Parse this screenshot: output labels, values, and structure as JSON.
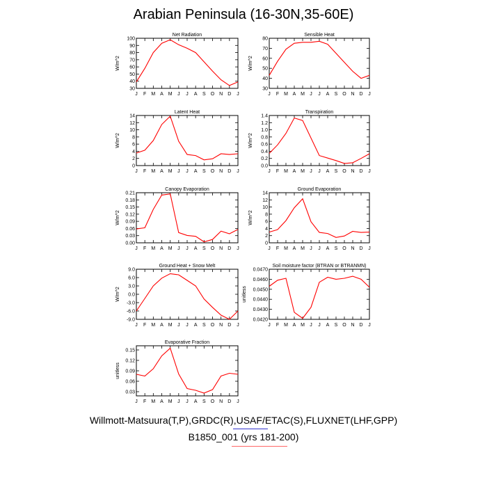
{
  "title": "Arabian Peninsula (16-30N,35-60E)",
  "footer": {
    "line1": "Willmott-Matsuura(T,P),GRDC(R),USAF/ETAC(S),FLUXNET(LHF,GPP)",
    "line2": "B1850_001 (yrs 181-200)",
    "underline_colors": [
      "#3333cc",
      "#ff6666"
    ]
  },
  "colors": {
    "line": "#ff0000",
    "axis": "#000000"
  },
  "chart_data": [
    {
      "type": "line",
      "title": "Net Radiation",
      "ylabel": "W/m^2",
      "categories": [
        "J",
        "F",
        "M",
        "A",
        "M",
        "J",
        "J",
        "A",
        "S",
        "O",
        "N",
        "D",
        "J"
      ],
      "values": [
        39,
        58,
        80,
        93,
        98,
        91,
        86,
        80,
        67,
        54,
        42,
        34,
        39
      ],
      "ylim": [
        30,
        100
      ],
      "yticks": [
        "30",
        "40",
        "50",
        "60",
        "70",
        "80",
        "90",
        "100"
      ],
      "ytick_values": [
        30,
        40,
        50,
        60,
        70,
        80,
        90,
        100
      ]
    },
    {
      "type": "line",
      "title": "Sensible Heat",
      "ylabel": "W/m^2",
      "categories": [
        "J",
        "F",
        "M",
        "A",
        "M",
        "J",
        "J",
        "A",
        "S",
        "O",
        "N",
        "D",
        "J"
      ],
      "values": [
        43,
        57,
        69,
        75,
        76,
        76,
        77,
        74,
        65,
        56,
        47,
        40,
        43
      ],
      "ylim": [
        30,
        80
      ],
      "yticks": [
        "30",
        "40",
        "50",
        "60",
        "70",
        "80"
      ],
      "ytick_values": [
        30,
        40,
        50,
        60,
        70,
        80
      ]
    },
    {
      "type": "line",
      "title": "Latent Heat",
      "ylabel": "W/m^2",
      "categories": [
        "J",
        "F",
        "M",
        "A",
        "M",
        "J",
        "J",
        "A",
        "S",
        "O",
        "N",
        "D",
        "J"
      ],
      "values": [
        3.5,
        4.3,
        7.0,
        11.5,
        13.8,
        6.8,
        3.1,
        2.8,
        1.6,
        1.9,
        3.3,
        3.1,
        3.3
      ],
      "ylim": [
        0,
        14
      ],
      "yticks": [
        "0",
        "2",
        "4",
        "6",
        "8",
        "10",
        "12",
        "14"
      ],
      "ytick_values": [
        0,
        2,
        4,
        6,
        8,
        10,
        12,
        14
      ]
    },
    {
      "type": "line",
      "title": "Transpiration",
      "ylabel": "W/m^2",
      "categories": [
        "J",
        "F",
        "M",
        "A",
        "M",
        "J",
        "J",
        "A",
        "S",
        "O",
        "N",
        "D",
        "J"
      ],
      "values": [
        0.34,
        0.58,
        0.9,
        1.33,
        1.26,
        0.77,
        0.28,
        0.21,
        0.14,
        0.06,
        0.08,
        0.2,
        0.33
      ],
      "ylim": [
        0,
        1.4
      ],
      "yticks": [
        "0.0",
        "0.2",
        "0.4",
        "0.6",
        "0.8",
        "1.0",
        "1.2",
        "1.4"
      ],
      "ytick_values": [
        0,
        0.2,
        0.4,
        0.6,
        0.8,
        1.0,
        1.2,
        1.4
      ]
    },
    {
      "type": "line",
      "title": "Canopy Evaporation",
      "ylabel": "W/m^2",
      "categories": [
        "J",
        "F",
        "M",
        "A",
        "M",
        "J",
        "J",
        "A",
        "S",
        "O",
        "N",
        "D",
        "J"
      ],
      "values": [
        0.058,
        0.063,
        0.14,
        0.2,
        0.205,
        0.043,
        0.031,
        0.027,
        0.004,
        0.014,
        0.049,
        0.038,
        0.056
      ],
      "ylim": [
        0,
        0.21
      ],
      "yticks": [
        "0.00",
        "0.03",
        "0.06",
        "0.09",
        "0.12",
        "0.15",
        "0.18",
        "0.21"
      ],
      "ytick_values": [
        0,
        0.03,
        0.06,
        0.09,
        0.12,
        0.15,
        0.18,
        0.21
      ]
    },
    {
      "type": "line",
      "title": "Ground Evaporation",
      "ylabel": "W/m^2",
      "categories": [
        "J",
        "F",
        "M",
        "A",
        "M",
        "J",
        "J",
        "A",
        "S",
        "O",
        "N",
        "D",
        "J"
      ],
      "values": [
        3.0,
        3.7,
        6.2,
        9.8,
        12.3,
        5.9,
        2.9,
        2.6,
        1.5,
        1.9,
        3.2,
        2.9,
        3.0
      ],
      "ylim": [
        0,
        14
      ],
      "yticks": [
        "0",
        "2",
        "4",
        "6",
        "8",
        "10",
        "12",
        "14"
      ],
      "ytick_values": [
        0,
        2,
        4,
        6,
        8,
        10,
        12,
        14
      ]
    },
    {
      "type": "line",
      "title": "Ground Heat + Snow Melt",
      "ylabel": "W/m^2",
      "categories": [
        "J",
        "F",
        "M",
        "A",
        "M",
        "J",
        "J",
        "A",
        "S",
        "O",
        "N",
        "D",
        "J"
      ],
      "values": [
        -6.0,
        -1.5,
        3.0,
        5.8,
        7.4,
        7.0,
        5.0,
        3.0,
        -1.7,
        -4.7,
        -7.5,
        -9.0,
        -6.0
      ],
      "ylim": [
        -9,
        9
      ],
      "yticks": [
        "-9.0",
        "-6.0",
        "-3.0",
        "0.0",
        "3.0",
        "6.0",
        "9.0"
      ],
      "ytick_values": [
        -9,
        -6,
        -3,
        0,
        3,
        6,
        9
      ]
    },
    {
      "type": "line",
      "title": "Soil moisture factor (BTRAN or BTRANMN)",
      "ylabel": "unitless",
      "categories": [
        "J",
        "F",
        "M",
        "A",
        "M",
        "J",
        "J",
        "A",
        "S",
        "O",
        "N",
        "D",
        "J"
      ],
      "values": [
        0.0453,
        0.0459,
        0.0461,
        0.0427,
        0.0421,
        0.0432,
        0.0457,
        0.0462,
        0.046,
        0.0461,
        0.0463,
        0.046,
        0.0452
      ],
      "ylim": [
        0.042,
        0.047
      ],
      "yticks": [
        "0.0420",
        "0.0430",
        "0.0440",
        "0.0450",
        "0.0460",
        "0.0470"
      ],
      "ytick_values": [
        0.042,
        0.043,
        0.044,
        0.045,
        0.046,
        0.047
      ]
    },
    {
      "type": "line",
      "title": "Evaporative Fraction",
      "ylabel": "unitless",
      "categories": [
        "J",
        "F",
        "M",
        "A",
        "M",
        "J",
        "J",
        "A",
        "S",
        "O",
        "N",
        "D",
        "J"
      ],
      "values": [
        0.08,
        0.075,
        0.096,
        0.133,
        0.155,
        0.081,
        0.039,
        0.034,
        0.026,
        0.036,
        0.075,
        0.083,
        0.08
      ],
      "ylim": [
        0.018,
        0.162
      ],
      "yticks": [
        "0.03",
        "0.06",
        "0.09",
        "0.12",
        "0.15"
      ],
      "ytick_values": [
        0.03,
        0.06,
        0.09,
        0.12,
        0.15
      ]
    }
  ]
}
